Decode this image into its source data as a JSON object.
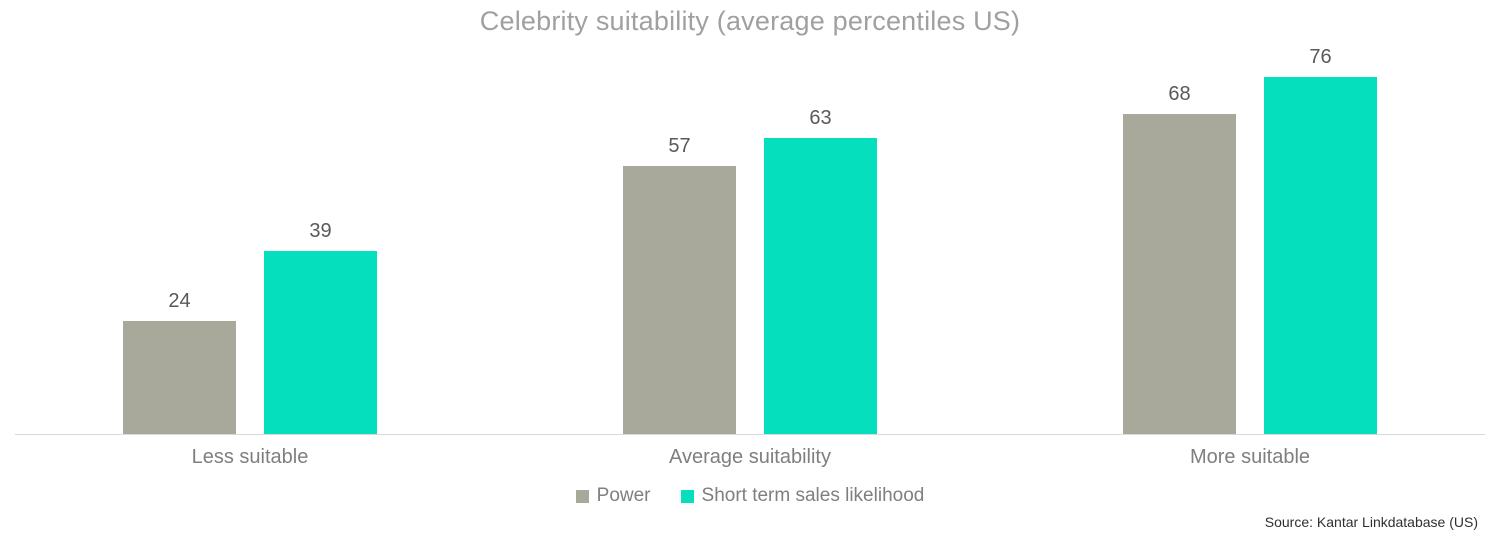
{
  "source": "Source: Kantar Linkdatabase (US)",
  "colors": {
    "power": "#a8a89b",
    "sales": "#06dfbd",
    "title_text": "#a0a0a0",
    "data_label": "#595959",
    "category_label": "#7f7f7f",
    "axis_line": "#d9d9d9"
  },
  "chart_data": {
    "type": "bar",
    "title": "Celebrity suitability (average percentiles US)",
    "categories": [
      "Less suitable",
      "Average suitability",
      "More suitable"
    ],
    "series": [
      {
        "name": "Power",
        "color": "#a8a89b",
        "values": [
          24,
          57,
          68
        ]
      },
      {
        "name": "Short term sales likelihood",
        "color": "#06dfbd",
        "values": [
          39,
          63,
          76
        ]
      }
    ],
    "xlabel": "",
    "ylabel": "",
    "ylim": [
      0,
      80
    ],
    "grid": false,
    "data_labels": true,
    "legend_position": "bottom"
  }
}
